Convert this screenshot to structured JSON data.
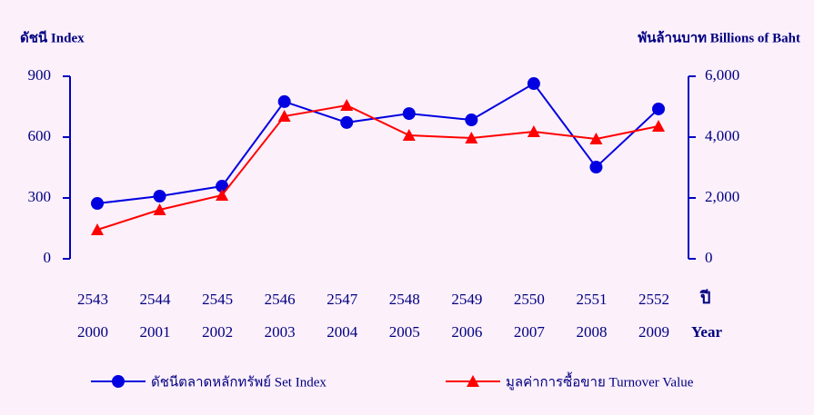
{
  "chart_data": {
    "type": "line",
    "left_label": "ดัชนี  Index",
    "right_label": "พันล้านบาท  Billions of Baht",
    "x_label_th": "ปี",
    "x_label": "Year",
    "categories_th": [
      "2543",
      "2544",
      "2545",
      "2546",
      "2547",
      "2548",
      "2549",
      "2550",
      "2551",
      "2552"
    ],
    "categories": [
      "2000",
      "2001",
      "2002",
      "2003",
      "2004",
      "2005",
      "2006",
      "2007",
      "2008",
      "2009"
    ],
    "series": [
      {
        "name": "ดัชนีตลาดหลักทรัพย์  Set Index",
        "color": "#0000e0",
        "marker": "circle",
        "values": [
          273,
          309,
          358,
          775,
          672,
          716,
          685,
          864,
          452,
          739
        ]
      },
      {
        "name": "มูลค่าการซื้อขาย  Turnover Value",
        "color": "#ff0000",
        "marker": "triangle",
        "axis": "y2",
        "values": [
          955,
          1612,
          2090,
          4687,
          5045,
          4060,
          3970,
          4179,
          3940,
          4358
        ]
      }
    ],
    "ylim": [
      0,
      900
    ],
    "yticks": [
      0,
      300,
      600,
      900
    ],
    "y2lim": [
      0,
      6000
    ],
    "y2ticks": [
      0,
      {
        "value": 2000,
        "label": "2,000"
      },
      {
        "value": 4000,
        "label": "4,000"
      },
      {
        "value": 6000,
        "label": "6,000"
      }
    ]
  }
}
